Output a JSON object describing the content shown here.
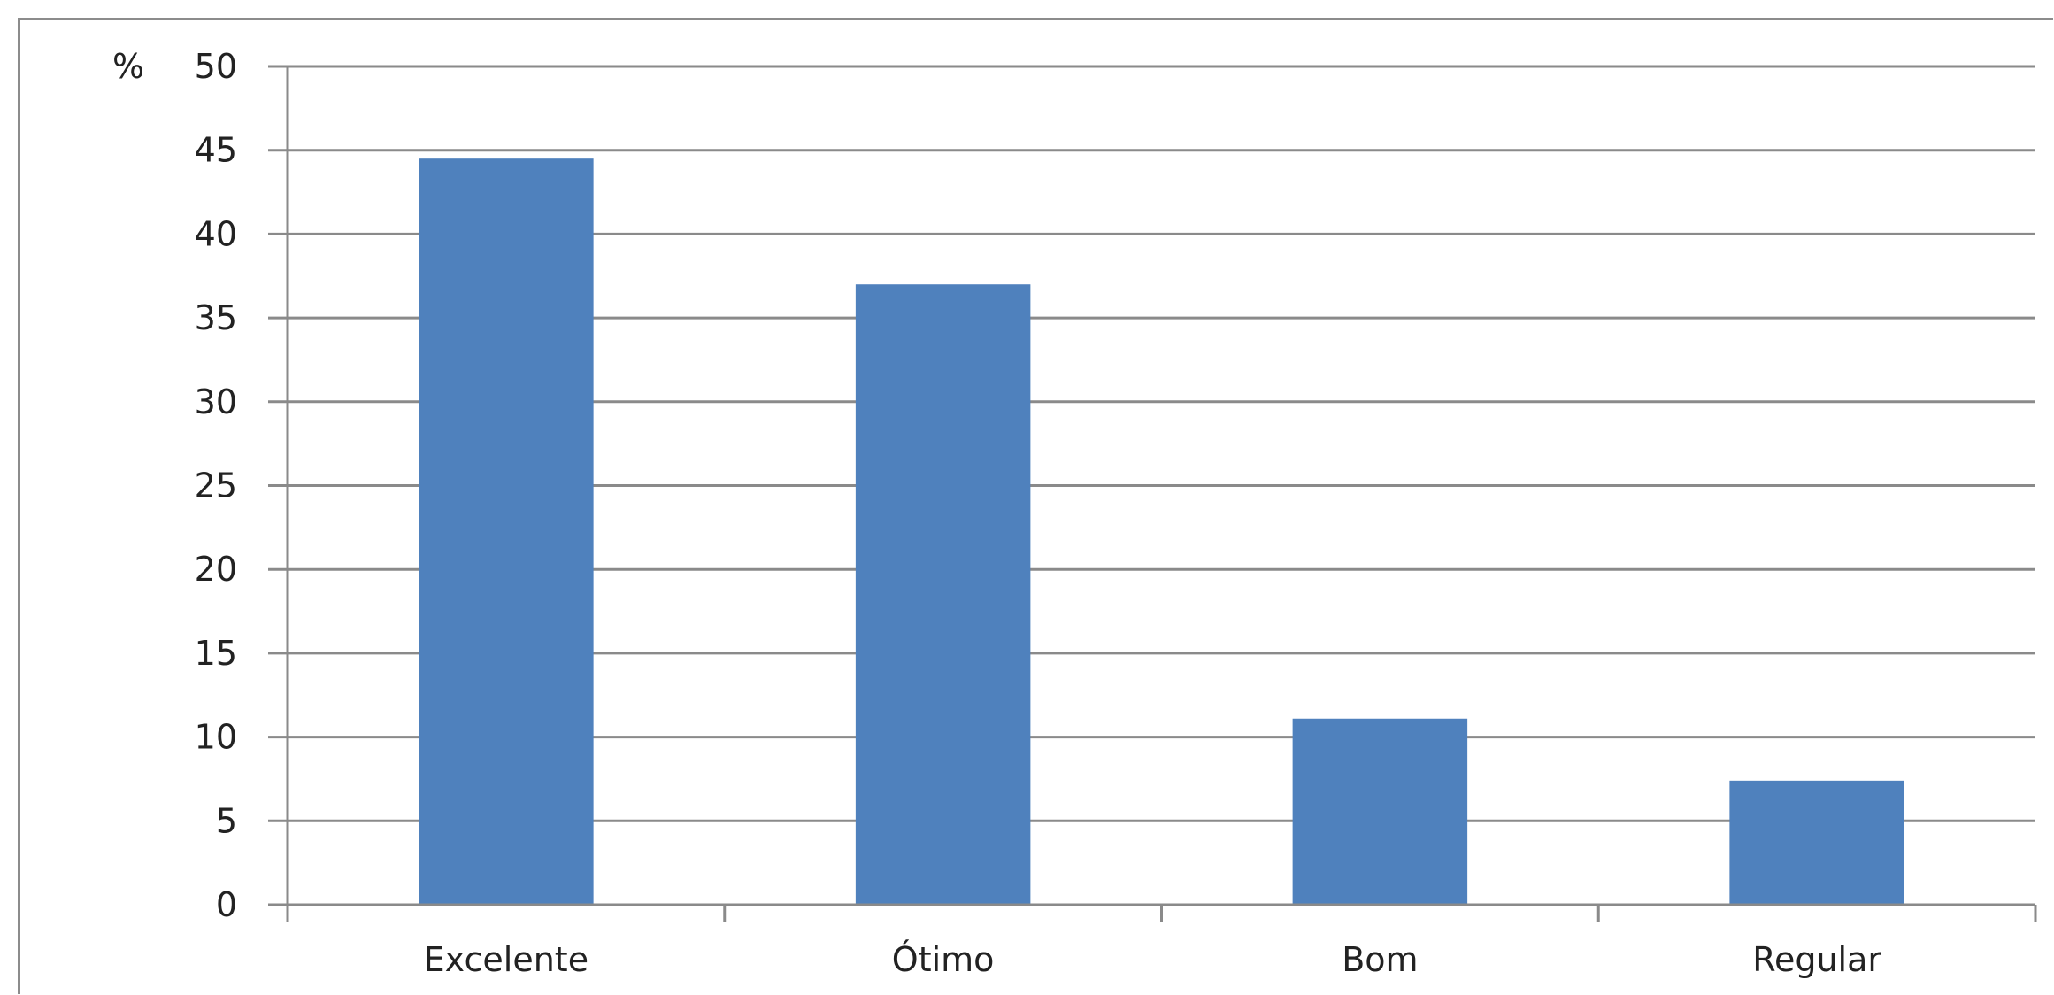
{
  "chart_data": {
    "type": "bar",
    "categories": [
      "Excelente",
      "Ótimo",
      "Bom",
      "Regular"
    ],
    "values": [
      44.5,
      37,
      11.1,
      7.4
    ],
    "ylabel": "%",
    "ylim": [
      0,
      50
    ],
    "yticks": [
      0,
      5,
      10,
      15,
      20,
      25,
      30,
      35,
      40,
      45,
      50
    ],
    "grid": true,
    "bar_color": "#4f81bd"
  }
}
